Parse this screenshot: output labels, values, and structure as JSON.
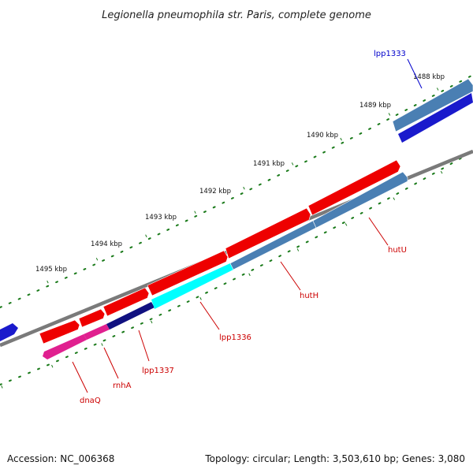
{
  "title": "Legionella pneumophila str. Paris, complete genome",
  "footer": {
    "accession": "Accession: NC_006368",
    "summary": "Topology: circular; Length: 3,503,610 bp; Genes: 3,080"
  },
  "scale_labels": [
    "1488 kbp",
    "1489 kbp",
    "1490 kbp",
    "1491 kbp",
    "1492 kbp",
    "1493 kbp",
    "1494 kbp",
    "1495 kbp"
  ],
  "genes": {
    "lpp1333": "lpp1333",
    "hutU": "hutU",
    "hutH": "hutH",
    "lpp1336": "lpp1336",
    "lpp1337": "lpp1337",
    "rnhA": "rnhA",
    "dnaQ": "dnaQ"
  },
  "colors": {
    "forward_cds": "#ee0000",
    "reverse_cds": "#4a7fb3",
    "highlight_cds": "#1a1acc",
    "cyan_feature": "#00ffff",
    "navy_feature": "#101080",
    "magenta_feature": "#e0208f",
    "backbone": "#7a7a7a",
    "ticks": "#1a7a1a",
    "label_blue": "#0000cc",
    "label_red": "#cc0000"
  }
}
